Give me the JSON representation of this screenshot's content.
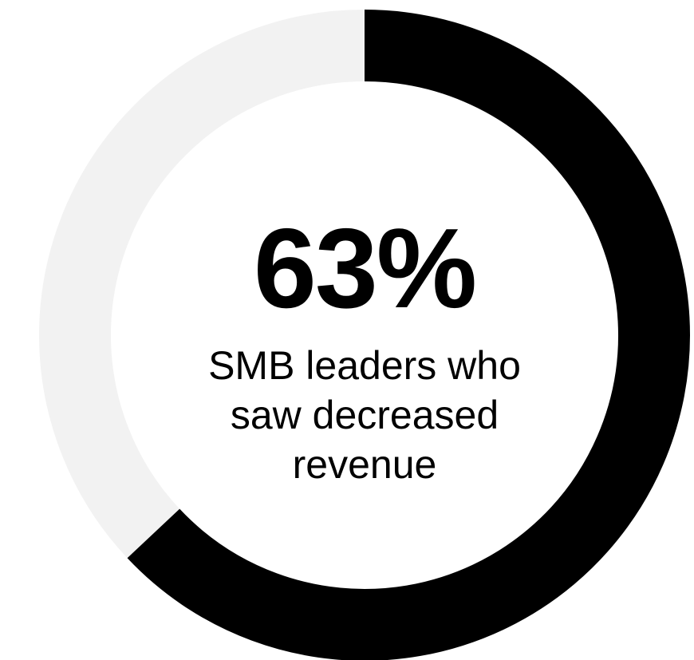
{
  "chart_data": {
    "type": "donut",
    "values": [
      63
    ],
    "value_labels": [
      "63%"
    ],
    "max": 100,
    "color": "#000000",
    "track_color": "#f2f2f2",
    "label": "SMB leaders who saw decreased revenue"
  }
}
